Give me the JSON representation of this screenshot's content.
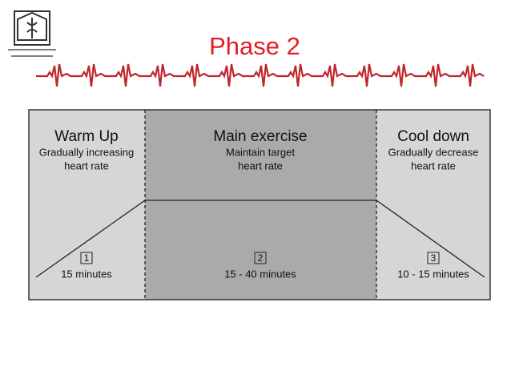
{
  "header": {
    "title": "Phase 2"
  },
  "phases": [
    {
      "name": "Warm Up",
      "description": [
        "Gradually increasing",
        "heart rate"
      ],
      "number": "1",
      "duration": "15 minutes"
    },
    {
      "name": "Main exercise",
      "description": [
        "Maintain target",
        "heart rate"
      ],
      "number": "2",
      "duration": "15 - 40 minutes"
    },
    {
      "name": "Cool down",
      "description": [
        "Gradually decrease",
        "heart rate"
      ],
      "number": "3",
      "duration": "10 - 15 minutes"
    }
  ]
}
